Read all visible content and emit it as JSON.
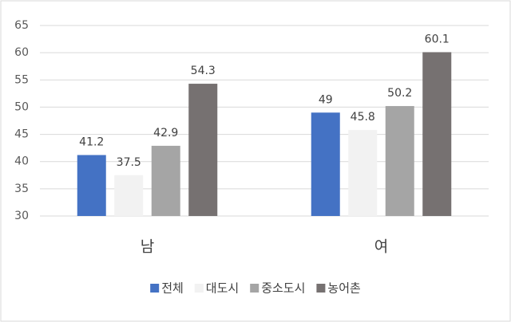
{
  "chart_data": {
    "type": "bar",
    "categories": [
      "남",
      "여"
    ],
    "series": [
      {
        "name": "전체",
        "color": "#4472c4",
        "values": [
          41.2,
          49
        ]
      },
      {
        "name": "대도시",
        "color": "#f2f2f2",
        "values": [
          37.5,
          45.8
        ]
      },
      {
        "name": "중소도시",
        "color": "#a5a5a5",
        "values": [
          42.9,
          50.2
        ]
      },
      {
        "name": "농어촌",
        "color": "#767171",
        "values": [
          54.3,
          60.1
        ]
      }
    ],
    "ylim": [
      30,
      65
    ],
    "yticks": [
      30,
      35,
      40,
      45,
      50,
      55,
      60,
      65
    ],
    "grid": true,
    "legend": "bottom"
  }
}
